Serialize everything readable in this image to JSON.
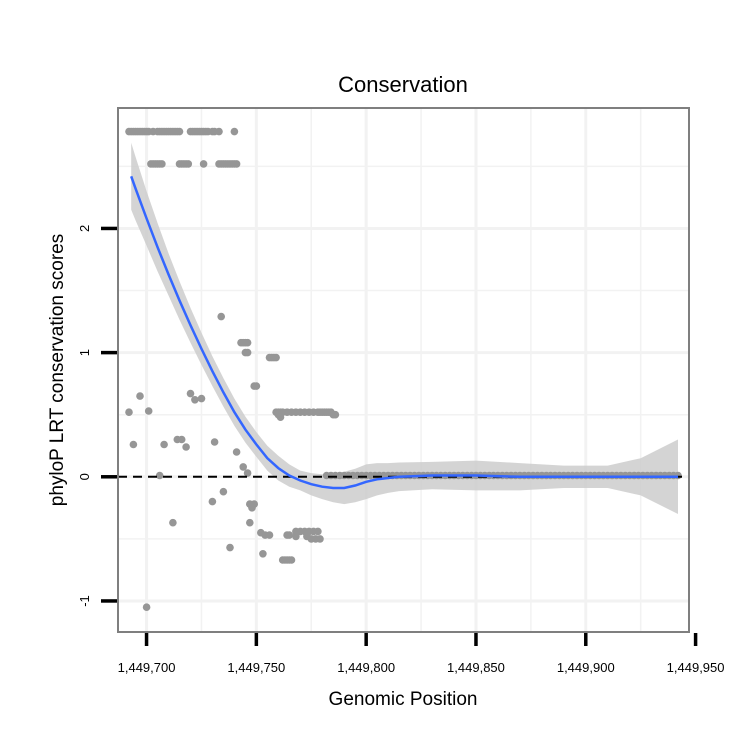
{
  "chart_data": {
    "type": "scatter",
    "title": "Conservation",
    "xlabel": "Genomic Position",
    "ylabel": "phyloP LRT conservation scores",
    "xlim": [
      1449687,
      1449947
    ],
    "ylim": [
      -1.25,
      2.97
    ],
    "x_ticks": [
      {
        "value": 1449700,
        "label": "1,449,700"
      },
      {
        "value": 1449750,
        "label": "1,449,750"
      },
      {
        "value": 1449800,
        "label": "1,449,800"
      },
      {
        "value": 1449850,
        "label": "1,449,850"
      },
      {
        "value": 1449900,
        "label": "1,449,900"
      },
      {
        "value": 1449950,
        "label": "1,449,950"
      }
    ],
    "y_ticks": [
      {
        "value": -1,
        "label": "-1"
      },
      {
        "value": 0,
        "label": "0"
      },
      {
        "value": 1,
        "label": "1"
      },
      {
        "value": 2,
        "label": "2"
      }
    ],
    "reference_line": {
      "y": 0,
      "style": "dashed"
    },
    "grid": true,
    "colors": {
      "points": "#969696",
      "smooth_line": "#3366ff",
      "ci_band": "#cccccc",
      "grid": "#f2f2f2",
      "reference": "#000000"
    },
    "points": [
      [
        1449692,
        2.78
      ],
      [
        1449693,
        2.78
      ],
      [
        1449694,
        2.78
      ],
      [
        1449695,
        2.78
      ],
      [
        1449696,
        2.78
      ],
      [
        1449697,
        2.78
      ],
      [
        1449698,
        2.78
      ],
      [
        1449699,
        2.78
      ],
      [
        1449700,
        2.78
      ],
      [
        1449701,
        2.78
      ],
      [
        1449703,
        2.78
      ],
      [
        1449705,
        2.78
      ],
      [
        1449706,
        2.78
      ],
      [
        1449707,
        2.78
      ],
      [
        1449708,
        2.78
      ],
      [
        1449709,
        2.78
      ],
      [
        1449710,
        2.78
      ],
      [
        1449711,
        2.78
      ],
      [
        1449712,
        2.78
      ],
      [
        1449713,
        2.78
      ],
      [
        1449714,
        2.78
      ],
      [
        1449715,
        2.78
      ],
      [
        1449720,
        2.78
      ],
      [
        1449721,
        2.78
      ],
      [
        1449722,
        2.78
      ],
      [
        1449723,
        2.78
      ],
      [
        1449724,
        2.78
      ],
      [
        1449725,
        2.78
      ],
      [
        1449726,
        2.78
      ],
      [
        1449727,
        2.78
      ],
      [
        1449728,
        2.78
      ],
      [
        1449730,
        2.78
      ],
      [
        1449731,
        2.78
      ],
      [
        1449733,
        2.78
      ],
      [
        1449740,
        2.78
      ],
      [
        1449702,
        2.52
      ],
      [
        1449703,
        2.52
      ],
      [
        1449704,
        2.52
      ],
      [
        1449705,
        2.52
      ],
      [
        1449706,
        2.52
      ],
      [
        1449707,
        2.52
      ],
      [
        1449715,
        2.52
      ],
      [
        1449716,
        2.52
      ],
      [
        1449717,
        2.52
      ],
      [
        1449718,
        2.52
      ],
      [
        1449719,
        2.52
      ],
      [
        1449726,
        2.52
      ],
      [
        1449733,
        2.52
      ],
      [
        1449734,
        2.52
      ],
      [
        1449735,
        2.52
      ],
      [
        1449736,
        2.52
      ],
      [
        1449737,
        2.52
      ],
      [
        1449738,
        2.52
      ],
      [
        1449739,
        2.52
      ],
      [
        1449740,
        2.52
      ],
      [
        1449741,
        2.52
      ],
      [
        1449734,
        1.29
      ],
      [
        1449743,
        1.08
      ],
      [
        1449744,
        1.08
      ],
      [
        1449745,
        1.08
      ],
      [
        1449746,
        1.08
      ],
      [
        1449745,
        1.0
      ],
      [
        1449746,
        1.0
      ],
      [
        1449749,
        0.73
      ],
      [
        1449750,
        0.73
      ],
      [
        1449756,
        0.96
      ],
      [
        1449757,
        0.96
      ],
      [
        1449758,
        0.96
      ],
      [
        1449759,
        0.96
      ],
      [
        1449759,
        0.52
      ],
      [
        1449760,
        0.52
      ],
      [
        1449761,
        0.52
      ],
      [
        1449762,
        0.52
      ],
      [
        1449764,
        0.52
      ],
      [
        1449766,
        0.52
      ],
      [
        1449768,
        0.52
      ],
      [
        1449770,
        0.52
      ],
      [
        1449772,
        0.52
      ],
      [
        1449774,
        0.52
      ],
      [
        1449776,
        0.52
      ],
      [
        1449778,
        0.52
      ],
      [
        1449779,
        0.52
      ],
      [
        1449780,
        0.52
      ],
      [
        1449781,
        0.52
      ],
      [
        1449782,
        0.52
      ],
      [
        1449783,
        0.52
      ],
      [
        1449784,
        0.52
      ],
      [
        1449785,
        0.5
      ],
      [
        1449786,
        0.5
      ],
      [
        1449760,
        0.5
      ],
      [
        1449761,
        0.48
      ],
      [
        1449697,
        0.65
      ],
      [
        1449692,
        0.52
      ],
      [
        1449701,
        0.53
      ],
      [
        1449694,
        0.26
      ],
      [
        1449708,
        0.26
      ],
      [
        1449714,
        0.3
      ],
      [
        1449716,
        0.3
      ],
      [
        1449718,
        0.24
      ],
      [
        1449720,
        0.67
      ],
      [
        1449722,
        0.62
      ],
      [
        1449725,
        0.63
      ],
      [
        1449706,
        0.01
      ],
      [
        1449712,
        -0.37
      ],
      [
        1449731,
        0.28
      ],
      [
        1449741,
        0.2
      ],
      [
        1449744,
        0.08
      ],
      [
        1449746,
        0.03
      ],
      [
        1449730,
        -0.2
      ],
      [
        1449735,
        -0.12
      ],
      [
        1449738,
        -0.57
      ],
      [
        1449747,
        -0.22
      ],
      [
        1449748,
        -0.25
      ],
      [
        1449749,
        -0.22
      ],
      [
        1449747,
        -0.37
      ],
      [
        1449752,
        -0.45
      ],
      [
        1449754,
        -0.47
      ],
      [
        1449756,
        -0.47
      ],
      [
        1449753,
        -0.62
      ],
      [
        1449762,
        -0.67
      ],
      [
        1449763,
        -0.67
      ],
      [
        1449764,
        -0.67
      ],
      [
        1449765,
        -0.67
      ],
      [
        1449766,
        -0.67
      ],
      [
        1449764,
        -0.47
      ],
      [
        1449765,
        -0.47
      ],
      [
        1449768,
        -0.48
      ],
      [
        1449768,
        -0.44
      ],
      [
        1449770,
        -0.44
      ],
      [
        1449772,
        -0.44
      ],
      [
        1449774,
        -0.44
      ],
      [
        1449776,
        -0.44
      ],
      [
        1449778,
        -0.44
      ],
      [
        1449773,
        -0.48
      ],
      [
        1449775,
        -0.5
      ],
      [
        1449777,
        -0.5
      ],
      [
        1449779,
        -0.5
      ],
      [
        1449700,
        -1.05
      ]
    ],
    "baseline_points": {
      "x_start": 1449782,
      "x_end": 1449942,
      "step": 2,
      "y": 0.01
    },
    "smooth": [
      [
        1449693,
        2.42
      ],
      [
        1449695,
        2.32
      ],
      [
        1449700,
        2.08
      ],
      [
        1449705,
        1.85
      ],
      [
        1449710,
        1.63
      ],
      [
        1449715,
        1.42
      ],
      [
        1449720,
        1.22
      ],
      [
        1449725,
        1.03
      ],
      [
        1449730,
        0.85
      ],
      [
        1449735,
        0.68
      ],
      [
        1449740,
        0.52
      ],
      [
        1449745,
        0.38
      ],
      [
        1449750,
        0.26
      ],
      [
        1449755,
        0.15
      ],
      [
        1449760,
        0.07
      ],
      [
        1449765,
        0.01
      ],
      [
        1449770,
        -0.03
      ],
      [
        1449775,
        -0.06
      ],
      [
        1449780,
        -0.08
      ],
      [
        1449785,
        -0.09
      ],
      [
        1449790,
        -0.09
      ],
      [
        1449795,
        -0.07
      ],
      [
        1449800,
        -0.04
      ],
      [
        1449805,
        -0.02
      ],
      [
        1449810,
        -0.01
      ],
      [
        1449815,
        0.0
      ],
      [
        1449830,
        0.01
      ],
      [
        1449850,
        0.01
      ],
      [
        1449870,
        0.0
      ],
      [
        1449890,
        0.0
      ],
      [
        1449910,
        0.0
      ],
      [
        1449925,
        0.0
      ],
      [
        1449942,
        0.0
      ]
    ],
    "ci_half_width": [
      [
        1449693,
        0.27
      ],
      [
        1449700,
        0.22
      ],
      [
        1449710,
        0.17
      ],
      [
        1449720,
        0.14
      ],
      [
        1449730,
        0.12
      ],
      [
        1449740,
        0.11
      ],
      [
        1449750,
        0.1
      ],
      [
        1449760,
        0.1
      ],
      [
        1449770,
        0.08
      ],
      [
        1449780,
        0.1
      ],
      [
        1449790,
        0.13
      ],
      [
        1449800,
        0.14
      ],
      [
        1449810,
        0.12
      ],
      [
        1449820,
        0.11
      ],
      [
        1449830,
        0.11
      ],
      [
        1449840,
        0.12
      ],
      [
        1449850,
        0.12
      ],
      [
        1449860,
        0.12
      ],
      [
        1449870,
        0.11
      ],
      [
        1449880,
        0.1
      ],
      [
        1449890,
        0.09
      ],
      [
        1449900,
        0.08
      ],
      [
        1449910,
        0.09
      ],
      [
        1449920,
        0.12
      ],
      [
        1449930,
        0.18
      ],
      [
        1449942,
        0.3
      ]
    ]
  }
}
